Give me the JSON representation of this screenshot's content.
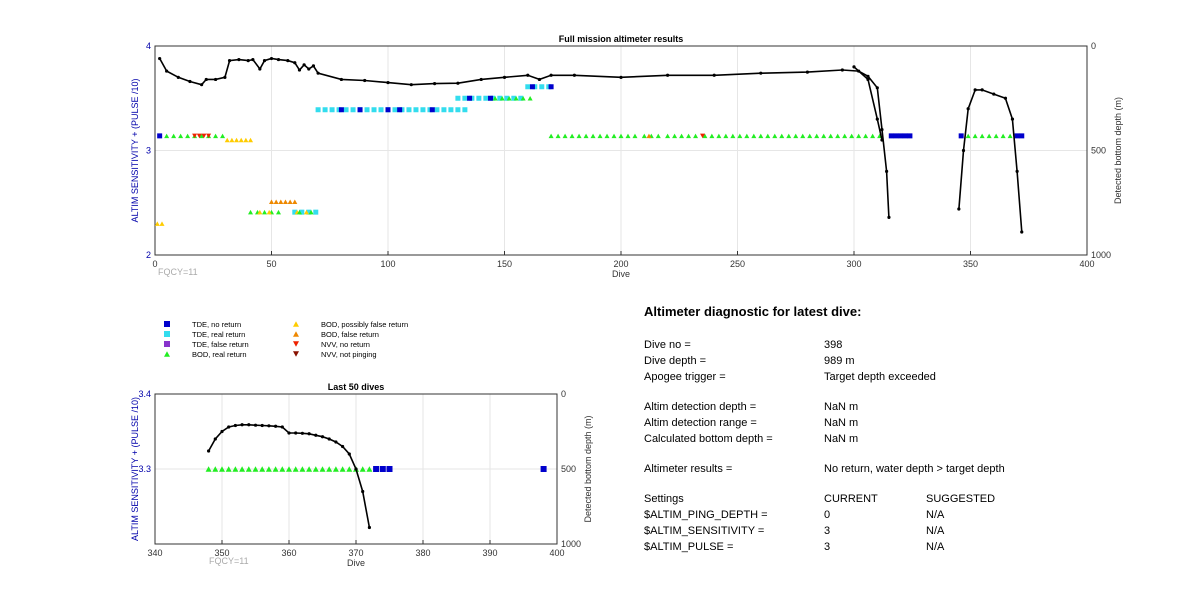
{
  "colors": {
    "tde_no_return": "#0000cc",
    "tde_real_return": "#33ddee",
    "tde_false_return": "#8833cc",
    "bod_real_return": "#22ee22",
    "bod_possibly_false": "#ffcc00",
    "bod_false_return": "#ee8800",
    "nvv_no_return": "#ee2200",
    "nvv_not_pinging": "#881100",
    "depth_line": "#000000",
    "axis_label": "#0000aa",
    "fqcy": "#aaaaaa"
  },
  "chart_data": [
    {
      "type": "scatter",
      "title": "Full mission altimeter results",
      "xlabel": "Dive",
      "ylabel": "ALTIM SENSITIVITY + (PULSE /10)",
      "y2label": "Detected bottom depth (m)",
      "xlim": [
        0,
        400
      ],
      "ylim": [
        2,
        4
      ],
      "y2lim": [
        1000,
        0
      ],
      "grid": true,
      "xticks": [
        "0",
        "50",
        "100",
        "150",
        "200",
        "250",
        "300",
        "350",
        "400"
      ],
      "yticks": [
        "2",
        "3",
        "4"
      ],
      "y2ticks": [
        "1000",
        "500",
        "0"
      ],
      "annotation": "FQCY=11",
      "depth_series": {
        "name": "Detected bottom depth",
        "segments": [
          [
            [
              2,
              60
            ],
            [
              5,
              120
            ],
            [
              10,
              150
            ],
            [
              15,
              170
            ],
            [
              20,
              185
            ],
            [
              22,
              160
            ],
            [
              26,
              160
            ],
            [
              30,
              150
            ],
            [
              32,
              70
            ],
            [
              36,
              65
            ],
            [
              40,
              70
            ],
            [
              42,
              65
            ],
            [
              45,
              110
            ],
            [
              47,
              70
            ],
            [
              50,
              60
            ],
            [
              53,
              65
            ],
            [
              57,
              70
            ],
            [
              60,
              80
            ],
            [
              62,
              115
            ],
            [
              64,
              90
            ],
            [
              66,
              110
            ],
            [
              68,
              95
            ],
            [
              70,
              130
            ],
            [
              80,
              160
            ],
            [
              90,
              165
            ],
            [
              100,
              175
            ],
            [
              110,
              185
            ],
            [
              120,
              180
            ],
            [
              130,
              178
            ],
            [
              140,
              160
            ],
            [
              150,
              150
            ],
            [
              160,
              140
            ],
            [
              165,
              160
            ],
            [
              170,
              140
            ],
            [
              180,
              140
            ],
            [
              200,
              150
            ],
            [
              220,
              140
            ],
            [
              240,
              140
            ],
            [
              260,
              130
            ],
            [
              280,
              125
            ],
            [
              295,
              115
            ],
            [
              302,
              120
            ],
            [
              306,
              145
            ],
            [
              310,
              200
            ],
            [
              312,
              400
            ],
            [
              314,
              600
            ],
            [
              315,
              820
            ]
          ],
          [
            [
              300,
              100
            ],
            [
              306,
              160
            ],
            [
              310,
              350
            ],
            [
              312,
              450
            ]
          ],
          [
            [
              345,
              780
            ],
            [
              347,
              500
            ],
            [
              349,
              300
            ],
            [
              352,
              210
            ],
            [
              355,
              210
            ],
            [
              360,
              230
            ],
            [
              365,
              250
            ],
            [
              368,
              350
            ],
            [
              370,
              600
            ],
            [
              372,
              890
            ]
          ]
        ]
      },
      "altim_markers": [
        {
          "kind": "tde_no_return",
          "y": 3.14,
          "x": [
            2,
            316,
            318,
            320,
            322,
            324,
            346,
            370,
            372
          ]
        },
        {
          "kind": "bod_real_return",
          "y": 3.14,
          "x": [
            5,
            8,
            11,
            14,
            17,
            20,
            23,
            26,
            29,
            170,
            173,
            176,
            179,
            182,
            185,
            188,
            191,
            194,
            197,
            200,
            203,
            206,
            210,
            213,
            216,
            220,
            223,
            226,
            229,
            232,
            236,
            239,
            242,
            245,
            248,
            251,
            254,
            257,
            260,
            263,
            266,
            269,
            272,
            275,
            278,
            281,
            284,
            287,
            290,
            293,
            296,
            299,
            302,
            305,
            308,
            311,
            349,
            352,
            355,
            358,
            361,
            364,
            367
          ]
        },
        {
          "kind": "nvv_no_return",
          "y": 3.14,
          "x": [
            17,
            19,
            21,
            23,
            235
          ]
        },
        {
          "kind": "bod_false_return",
          "y": 3.14,
          "x": [
            212
          ]
        },
        {
          "kind": "bod_possibly_false",
          "y": 3.1,
          "x": [
            31,
            33,
            35,
            37,
            39,
            41
          ]
        },
        {
          "kind": "tde_real_return",
          "y": 3.39,
          "x": [
            70,
            73,
            76,
            79,
            82,
            85,
            88,
            91,
            94,
            97,
            100,
            103,
            106,
            109,
            112,
            115,
            118,
            121,
            124,
            127,
            130,
            133
          ]
        },
        {
          "kind": "tde_no_return",
          "y": 3.39,
          "x": [
            80,
            88,
            100,
            105,
            119
          ]
        },
        {
          "kind": "tde_real_return",
          "y": 3.5,
          "x": [
            130,
            133,
            136,
            139,
            142,
            145,
            148,
            151,
            154,
            157
          ]
        },
        {
          "kind": "tde_no_return",
          "y": 3.5,
          "x": [
            135,
            144
          ]
        },
        {
          "kind": "bod_real_return",
          "y": 3.5,
          "x": [
            146,
            149,
            152,
            155,
            158,
            161
          ]
        },
        {
          "kind": "tde_real_return",
          "y": 3.61,
          "x": [
            160,
            163,
            166,
            169
          ]
        },
        {
          "kind": "tde_no_return",
          "y": 3.61,
          "x": [
            162,
            170
          ]
        },
        {
          "kind": "bod_possibly_false",
          "y": 2.3,
          "x": [
            1,
            3
          ]
        },
        {
          "kind": "bod_false_return",
          "y": 2.51,
          "x": [
            50,
            52,
            54,
            56,
            58,
            60
          ]
        },
        {
          "kind": "bod_real_return",
          "y": 2.41,
          "x": [
            41,
            44,
            47,
            50,
            53
          ]
        },
        {
          "kind": "bod_possibly_false",
          "y": 2.41,
          "x": [
            45,
            49
          ]
        },
        {
          "kind": "tde_real_return",
          "y": 2.41,
          "x": [
            60,
            63,
            66,
            69
          ]
        },
        {
          "kind": "bod_possibly_false",
          "y": 2.41,
          "x": [
            61,
            65
          ]
        },
        {
          "kind": "bod_real_return",
          "y": 2.41,
          "x": [
            62,
            67
          ]
        }
      ]
    },
    {
      "type": "scatter",
      "title": "Last 50 dives",
      "xlabel": "Dive",
      "ylabel": "ALTIM SENSITIVITY + (PULSE /10)",
      "y2label": "Detected bottom depth (m)",
      "xlim": [
        340,
        400
      ],
      "ylim": [
        3.2,
        3.4
      ],
      "y2lim": [
        1000,
        0
      ],
      "grid": true,
      "xticks": [
        "340",
        "350",
        "360",
        "370",
        "380",
        "390",
        "400"
      ],
      "yticks": [
        "3.3",
        "3.4"
      ],
      "y2ticks": [
        "1000",
        "500",
        "0"
      ],
      "annotation": "FQCY=11",
      "depth_series": {
        "name": "Detected bottom depth",
        "segments": [
          [
            [
              348,
              380
            ],
            [
              349,
              300
            ],
            [
              350,
              250
            ],
            [
              351,
              220
            ],
            [
              352,
              210
            ],
            [
              353,
              205
            ],
            [
              354,
              205
            ],
            [
              355,
              208
            ],
            [
              356,
              210
            ],
            [
              357,
              212
            ],
            [
              358,
              215
            ],
            [
              359,
              220
            ],
            [
              360,
              260
            ],
            [
              361,
              260
            ],
            [
              362,
              262
            ],
            [
              363,
              265
            ],
            [
              364,
              275
            ],
            [
              365,
              285
            ],
            [
              366,
              300
            ],
            [
              367,
              320
            ],
            [
              368,
              350
            ],
            [
              369,
              400
            ],
            [
              370,
              500
            ],
            [
              371,
              650
            ],
            [
              372,
              890
            ]
          ]
        ]
      },
      "altim_markers": [
        {
          "kind": "bod_real_return",
          "y": 3.3,
          "x": [
            348,
            349,
            350,
            351,
            352,
            353,
            354,
            355,
            356,
            357,
            358,
            359,
            360,
            361,
            362,
            363,
            364,
            365,
            366,
            367,
            368,
            369,
            370,
            371,
            372
          ]
        },
        {
          "kind": "tde_no_return",
          "y": 3.3,
          "x": [
            373,
            374,
            375,
            398
          ]
        }
      ]
    }
  ],
  "legend": [
    {
      "kind": "tde_no_return",
      "label": "TDE, no return"
    },
    {
      "kind": "tde_real_return",
      "label": "TDE, real return"
    },
    {
      "kind": "tde_false_return",
      "label": "TDE, false return"
    },
    {
      "kind": "bod_real_return",
      "label": "BOD, real return"
    },
    {
      "kind": "bod_possibly_false",
      "label": "BOD, possibly false return"
    },
    {
      "kind": "bod_false_return",
      "label": "BOD, false return"
    },
    {
      "kind": "nvv_no_return",
      "label": "NVV, no return"
    },
    {
      "kind": "nvv_not_pinging",
      "label": "NVV, not pinging"
    }
  ],
  "diagnostic": {
    "title": "Altimeter diagnostic for latest dive:",
    "dive_no_label": "Dive no =",
    "dive_no": "398",
    "dive_depth_label": "Dive depth =",
    "dive_depth": "989 m",
    "apogee_label": "Apogee trigger =",
    "apogee": "Target depth exceeded",
    "detection_depth_label": "Altim detection depth =",
    "detection_depth": "NaN m",
    "detection_range_label": "Altim detection range =",
    "detection_range": "NaN m",
    "calc_depth_label": "Calculated bottom depth =",
    "calc_depth": "NaN m",
    "results_label": "Altimeter results =",
    "results": "No return, water depth > target depth",
    "settings_label": "Settings",
    "current_header": "CURRENT",
    "suggested_header": "SUGGESTED",
    "ping_depth_label": "$ALTIM_PING_DEPTH =",
    "ping_depth_current": "0",
    "ping_depth_suggested": "N/A",
    "sensitivity_label": "$ALTIM_SENSITIVITY =",
    "sensitivity_current": "3",
    "sensitivity_suggested": "N/A",
    "pulse_label": "$ALTIM_PULSE =",
    "pulse_current": "3",
    "pulse_suggested": "N/A"
  }
}
